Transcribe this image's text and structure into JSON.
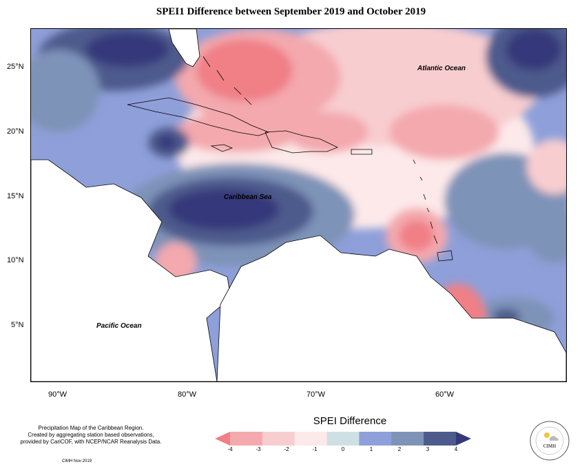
{
  "title": "SPEI1 Difference between September 2019 and October 2019",
  "axes": {
    "x_ticks": [
      "90°W",
      "80°W",
      "70°W",
      "60°W"
    ],
    "y_ticks": [
      "25°N",
      "20°N",
      "15°N",
      "10°N",
      "5°N"
    ]
  },
  "ocean_labels": {
    "atlantic": "Atlantic Ocean",
    "caribbean": "Caribbean Sea",
    "pacific": "Pacific Ocean"
  },
  "legend": {
    "title": "SPEI Difference",
    "ticks": [
      "-4",
      "-3",
      "-2",
      "-1",
      "0",
      "1",
      "2",
      "3",
      "4"
    ],
    "colors": [
      "#f07f86",
      "#f3a9ae",
      "#f8cdd0",
      "#fde9ea",
      "#cfe0e4",
      "#8e9fd9",
      "#7e93b8",
      "#4d5a8c",
      "#35377a"
    ]
  },
  "footer": {
    "line1": "Precipitation Map of the Caribbean Region.",
    "line2": "Created by aggregating station based observations,",
    "line3": "provided by CariCOF, with NCEP/NCAR Reanalysis Data.",
    "credit": "CIMH Nov-2019"
  },
  "logo": {
    "text": "CIMH"
  }
}
